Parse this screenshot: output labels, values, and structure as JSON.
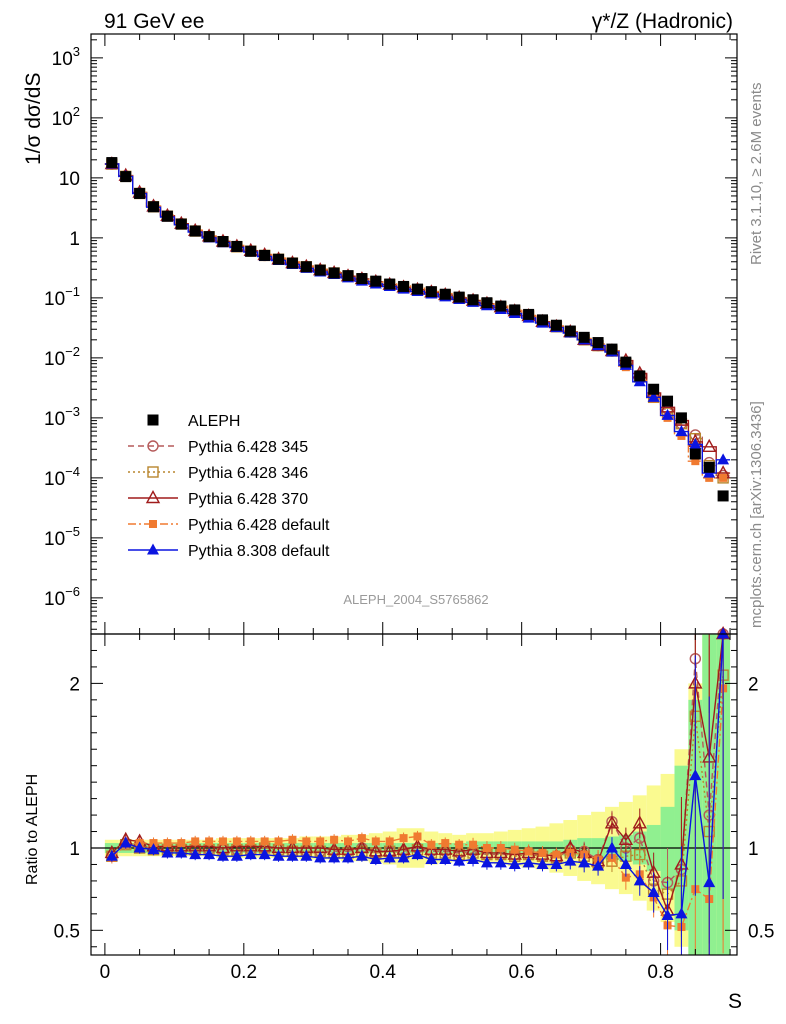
{
  "header": {
    "left": "91 GeV ee",
    "right": "γ*/Z (Hadronic)"
  },
  "side_labels": {
    "rivet": "Rivet 3.1.10, ≥ 2.6M events",
    "mcplots": "mcplots.cern.ch [arXiv:1306.3436]"
  },
  "watermark": "ALEPH_2004_S5765862",
  "chart_data": [
    {
      "type": "scatter",
      "panel": "main",
      "ylabel": "1/σ dσ/dS",
      "yscale": "log",
      "ylim": [
        2.5e-07,
        2500
      ],
      "xlim": [
        -0.02,
        0.91
      ],
      "ytick_labels": [
        {
          "value": 1000,
          "base": "10",
          "exp": "3"
        },
        {
          "value": 100,
          "base": "10",
          "exp": "2"
        },
        {
          "value": 10,
          "base": "10",
          "exp": ""
        },
        {
          "value": 1,
          "base": "1",
          "exp": ""
        },
        {
          "value": 0.1,
          "base": "10",
          "exp": "−1"
        },
        {
          "value": 0.01,
          "base": "10",
          "exp": "−2"
        },
        {
          "value": 0.001,
          "base": "10",
          "exp": "−3"
        },
        {
          "value": 0.0001,
          "base": "10",
          "exp": "−4"
        },
        {
          "value": 1e-05,
          "base": "10",
          "exp": "−5"
        },
        {
          "value": 1e-06,
          "base": "10",
          "exp": "−6"
        }
      ],
      "legend_placement": "bottom-left",
      "x": [
        0.01,
        0.03,
        0.05,
        0.07,
        0.09,
        0.11,
        0.13,
        0.15,
        0.17,
        0.19,
        0.21,
        0.23,
        0.25,
        0.27,
        0.29,
        0.31,
        0.33,
        0.35,
        0.37,
        0.39,
        0.41,
        0.43,
        0.45,
        0.47,
        0.49,
        0.51,
        0.53,
        0.55,
        0.57,
        0.59,
        0.61,
        0.63,
        0.65,
        0.67,
        0.69,
        0.71,
        0.73,
        0.75,
        0.77,
        0.79,
        0.81,
        0.83,
        0.85,
        0.87,
        0.89
      ],
      "series": [
        {
          "name": "ALEPH",
          "color": "#000000",
          "marker": "square-filled",
          "line": "none",
          "values": [
            18,
            10.5,
            5.5,
            3.3,
            2.3,
            1.7,
            1.3,
            1.05,
            0.87,
            0.72,
            0.6,
            0.51,
            0.44,
            0.38,
            0.33,
            0.29,
            0.26,
            0.235,
            0.21,
            0.19,
            0.17,
            0.155,
            0.14,
            0.127,
            0.115,
            0.103,
            0.093,
            0.083,
            0.073,
            0.063,
            0.053,
            0.043,
            0.035,
            0.028,
            0.022,
            0.018,
            0.014,
            0.0085,
            0.005,
            0.003,
            0.0019,
            0.001,
            0.00025,
            0.00015,
            5e-05
          ]
        },
        {
          "name": "Pythia 6.428 345",
          "color": "#b55a5a",
          "marker": "circle-open",
          "line": "dashed",
          "values": [
            17,
            10.8,
            5.6,
            3.35,
            2.33,
            1.72,
            1.31,
            1.05,
            0.87,
            0.72,
            0.6,
            0.51,
            0.44,
            0.38,
            0.33,
            0.29,
            0.26,
            0.23,
            0.206,
            0.185,
            0.166,
            0.15,
            0.137,
            0.124,
            0.112,
            0.1,
            0.09,
            0.08,
            0.07,
            0.06,
            0.05,
            0.04,
            0.033,
            0.027,
            0.02,
            0.016,
            0.013,
            0.0085,
            0.0052,
            0.0024,
            0.0014,
            0.0008,
            0.00052,
            0.00018,
            0.00011
          ]
        },
        {
          "name": "Pythia 6.428 346",
          "color": "#b8862e",
          "marker": "square-open",
          "line": "dotted",
          "values": [
            17,
            10.6,
            5.5,
            3.3,
            2.3,
            1.7,
            1.3,
            1.04,
            0.86,
            0.71,
            0.6,
            0.51,
            0.44,
            0.38,
            0.33,
            0.29,
            0.26,
            0.23,
            0.206,
            0.185,
            0.166,
            0.15,
            0.137,
            0.124,
            0.112,
            0.1,
            0.09,
            0.08,
            0.07,
            0.06,
            0.05,
            0.04,
            0.033,
            0.027,
            0.02,
            0.016,
            0.013,
            0.008,
            0.0048,
            0.0022,
            0.0012,
            0.0008,
            0.00045,
            0.00016,
            0.0001
          ]
        },
        {
          "name": "Pythia 6.428 370",
          "color": "#a01c1c",
          "marker": "triangle-open",
          "line": "solid",
          "values": [
            17,
            10.9,
            5.7,
            3.35,
            2.33,
            1.72,
            1.31,
            1.06,
            0.87,
            0.72,
            0.61,
            0.52,
            0.44,
            0.38,
            0.33,
            0.29,
            0.26,
            0.23,
            0.206,
            0.185,
            0.166,
            0.15,
            0.137,
            0.124,
            0.112,
            0.1,
            0.09,
            0.08,
            0.07,
            0.06,
            0.05,
            0.04,
            0.033,
            0.027,
            0.02,
            0.016,
            0.013,
            0.009,
            0.0055,
            0.0026,
            0.0015,
            0.0009,
            0.0004,
            0.00033,
            0.00012
          ]
        },
        {
          "name": "Pythia 6.428 default",
          "color": "#f07a30",
          "marker": "square-filled-small",
          "line": "dashdot",
          "values": [
            17,
            10.7,
            5.7,
            3.4,
            2.4,
            1.75,
            1.35,
            1.08,
            0.9,
            0.75,
            0.62,
            0.53,
            0.46,
            0.4,
            0.34,
            0.3,
            0.27,
            0.24,
            0.215,
            0.195,
            0.17,
            0.158,
            0.145,
            0.128,
            0.118,
            0.105,
            0.094,
            0.083,
            0.073,
            0.062,
            0.051,
            0.041,
            0.034,
            0.028,
            0.021,
            0.017,
            0.013,
            0.007,
            0.0042,
            0.0021,
            0.001,
            0.0005,
            0.00019,
            0.0001,
            0.0001
          ]
        },
        {
          "name": "Pythia 8.308 default",
          "color": "#0a14e0",
          "marker": "triangle-filled",
          "line": "solid",
          "values": [
            17,
            10.6,
            5.5,
            3.25,
            2.22,
            1.65,
            1.25,
            1.0,
            0.83,
            0.69,
            0.58,
            0.49,
            0.42,
            0.36,
            0.31,
            0.27,
            0.245,
            0.215,
            0.19,
            0.17,
            0.155,
            0.14,
            0.128,
            0.116,
            0.104,
            0.094,
            0.084,
            0.074,
            0.064,
            0.055,
            0.046,
            0.038,
            0.032,
            0.026,
            0.02,
            0.016,
            0.0125,
            0.0075,
            0.004,
            0.0022,
            0.0011,
            0.00059,
            0.00036,
            0.00012,
            0.0002
          ]
        }
      ]
    },
    {
      "type": "line",
      "panel": "ratio",
      "ylabel": "Ratio to ALEPH",
      "xlabel": "S",
      "ylim": [
        0.35,
        2.3
      ],
      "xlim": [
        -0.02,
        0.91
      ],
      "xticks": [
        {
          "value": 0,
          "label": "0"
        },
        {
          "value": 0.2,
          "label": "0.2"
        },
        {
          "value": 0.4,
          "label": "0.4"
        },
        {
          "value": 0.6,
          "label": "0.6"
        },
        {
          "value": 0.8,
          "label": "0.8"
        }
      ],
      "yticks": [
        {
          "value": 0.5,
          "label": "0.5"
        },
        {
          "value": 1,
          "label": "1"
        },
        {
          "value": 2,
          "label": "2"
        }
      ],
      "bands": {
        "x_edges": [
          0,
          0.02,
          0.04,
          0.06,
          0.08,
          0.1,
          0.12,
          0.14,
          0.16,
          0.18,
          0.2,
          0.22,
          0.24,
          0.26,
          0.28,
          0.3,
          0.32,
          0.34,
          0.36,
          0.38,
          0.4,
          0.42,
          0.44,
          0.46,
          0.48,
          0.5,
          0.52,
          0.54,
          0.56,
          0.58,
          0.6,
          0.62,
          0.64,
          0.66,
          0.68,
          0.7,
          0.72,
          0.74,
          0.76,
          0.78,
          0.8,
          0.82,
          0.84,
          0.86,
          0.88,
          0.9
        ],
        "stat_color": "#90f090",
        "total_color": "#fafa90",
        "stat_halfwidth": [
          0.03,
          0.03,
          0.03,
          0.03,
          0.03,
          0.03,
          0.03,
          0.03,
          0.03,
          0.03,
          0.03,
          0.03,
          0.03,
          0.03,
          0.03,
          0.03,
          0.03,
          0.03,
          0.03,
          0.03,
          0.03,
          0.03,
          0.03,
          0.03,
          0.03,
          0.03,
          0.04,
          0.04,
          0.04,
          0.04,
          0.04,
          0.04,
          0.04,
          0.05,
          0.06,
          0.06,
          0.07,
          0.08,
          0.1,
          0.14,
          0.25,
          0.5,
          0.9,
          1.4,
          2.0
        ],
        "total_halfwidth": [
          0.05,
          0.05,
          0.05,
          0.05,
          0.05,
          0.05,
          0.05,
          0.05,
          0.06,
          0.06,
          0.06,
          0.06,
          0.06,
          0.06,
          0.07,
          0.07,
          0.07,
          0.08,
          0.08,
          0.09,
          0.1,
          0.12,
          0.12,
          0.1,
          0.09,
          0.08,
          0.09,
          0.09,
          0.1,
          0.11,
          0.12,
          0.13,
          0.15,
          0.17,
          0.2,
          0.22,
          0.25,
          0.28,
          0.32,
          0.38,
          0.45,
          0.6,
          1.0,
          1.5,
          2.0
        ]
      },
      "series": [
        {
          "name": "Pythia 6.428 345",
          "color": "#b55a5a",
          "marker": "circle-open",
          "line": "dashed",
          "values": [
            0.95,
            1.03,
            1.02,
            0.99,
            0.99,
            0.99,
            0.99,
            0.99,
            0.99,
            0.99,
            0.99,
            1.0,
            1.0,
            0.98,
            0.98,
            0.98,
            0.98,
            0.98,
            1.0,
            0.97,
            0.98,
            0.98,
            1.0,
            0.98,
            0.98,
            0.97,
            0.98,
            0.96,
            0.96,
            0.96,
            0.96,
            0.95,
            0.94,
            0.99,
            0.98,
            0.93,
            1.16,
            1.0,
            1.06,
            0.8,
            0.79,
            0.87,
            2.15,
            1.2,
            2.3
          ]
        },
        {
          "name": "Pythia 6.428 346",
          "color": "#b8862e",
          "marker": "square-open",
          "line": "dotted",
          "values": [
            0.95,
            1.02,
            1.0,
            0.99,
            0.99,
            0.99,
            0.99,
            0.99,
            0.99,
            0.99,
            0.99,
            1.0,
            0.99,
            0.98,
            0.98,
            0.98,
            0.97,
            0.97,
            0.98,
            0.97,
            0.98,
            0.97,
            0.99,
            0.97,
            0.97,
            0.96,
            0.97,
            0.96,
            0.96,
            0.95,
            0.96,
            0.95,
            0.94,
            0.97,
            0.95,
            0.91,
            0.92,
            0.95,
            0.96,
            0.75,
            0.72,
            0.8,
            1.8,
            1.1,
            2.05
          ]
        },
        {
          "name": "Pythia 6.428 370",
          "color": "#a01c1c",
          "marker": "triangle-open",
          "line": "solid",
          "values": [
            0.97,
            1.05,
            1.04,
            1.01,
            1.01,
            1.01,
            1.01,
            1.01,
            1.0,
            1.01,
            1.01,
            1.01,
            1.0,
            1.0,
            1.0,
            1.0,
            0.99,
            0.99,
            1.0,
            0.98,
            0.98,
            0.99,
            1.01,
            0.99,
            0.99,
            0.98,
            0.99,
            0.97,
            0.97,
            0.96,
            0.97,
            0.96,
            0.95,
            1.0,
            0.97,
            0.92,
            1.15,
            1.05,
            1.15,
            0.85,
            0.62,
            0.9,
            2.0,
            1.55,
            2.3
          ]
        },
        {
          "name": "Pythia 6.428 default",
          "color": "#f07a30",
          "marker": "square-filled-small",
          "line": "dashdot",
          "values": [
            0.94,
            1.02,
            1.03,
            1.03,
            1.03,
            1.03,
            1.04,
            1.04,
            1.04,
            1.04,
            1.04,
            1.04,
            1.04,
            1.05,
            1.04,
            1.04,
            1.05,
            1.04,
            1.06,
            1.04,
            1.04,
            1.06,
            1.07,
            1.02,
            1.03,
            1.02,
            1.02,
            1.0,
            1.0,
            0.99,
            0.98,
            0.97,
            0.96,
            0.97,
            0.96,
            0.93,
            0.94,
            0.82,
            0.84,
            0.7,
            0.53,
            0.52,
            0.75,
            0.69,
            1.97
          ]
        },
        {
          "name": "Pythia 8.308 default",
          "color": "#0a14e0",
          "marker": "triangle-filled",
          "line": "solid",
          "values": [
            0.95,
            1.03,
            1.0,
            0.99,
            0.97,
            0.97,
            0.96,
            0.96,
            0.95,
            0.95,
            0.96,
            0.96,
            0.95,
            0.95,
            0.95,
            0.94,
            0.94,
            0.94,
            0.95,
            0.93,
            0.94,
            0.94,
            0.96,
            0.93,
            0.93,
            0.92,
            0.93,
            0.91,
            0.91,
            0.9,
            0.91,
            0.9,
            0.9,
            0.92,
            0.91,
            0.89,
            1.0,
            0.9,
            0.8,
            0.73,
            0.59,
            0.6,
            1.44,
            0.79,
            2.3
          ]
        }
      ]
    }
  ]
}
